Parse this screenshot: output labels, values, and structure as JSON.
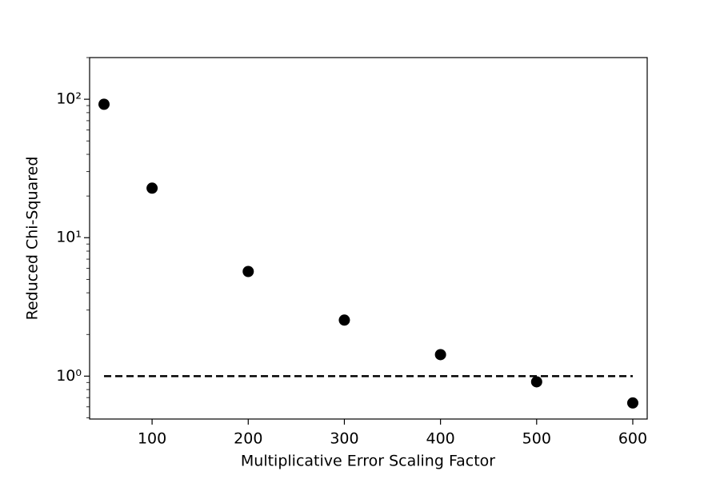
{
  "chart_data": {
    "type": "scatter",
    "x_label": "Multiplicative Error Scaling Factor",
    "y_label": "Reduced Chi-Squared",
    "series": [
      {
        "color": "#000000",
        "x": [
          50,
          100,
          200,
          300,
          400,
          500,
          600
        ],
        "values": [
          92,
          22.8,
          5.7,
          2.54,
          1.43,
          0.91,
          0.64
        ]
      }
    ],
    "reference_line": {
      "y": 1,
      "x": [
        50,
        600
      ],
      "color": "#000000",
      "style": "dashed"
    },
    "xlim": [
      35,
      615
    ],
    "ylim": [
      0.49,
      200
    ],
    "y_scale": "log",
    "xticks": [
      100,
      200,
      300,
      400,
      500,
      600
    ],
    "yticks": [
      {
        "value": 1,
        "label": "10⁰"
      },
      {
        "value": 10,
        "label": "10¹"
      },
      {
        "value": 100,
        "label": "10²"
      }
    ],
    "y_minor_ticks": [
      0.5,
      0.6,
      0.7,
      0.8,
      0.9,
      2,
      3,
      4,
      5,
      6,
      7,
      8,
      9,
      20,
      30,
      40,
      50,
      60,
      70,
      80,
      90,
      200
    ],
    "grid": false
  }
}
